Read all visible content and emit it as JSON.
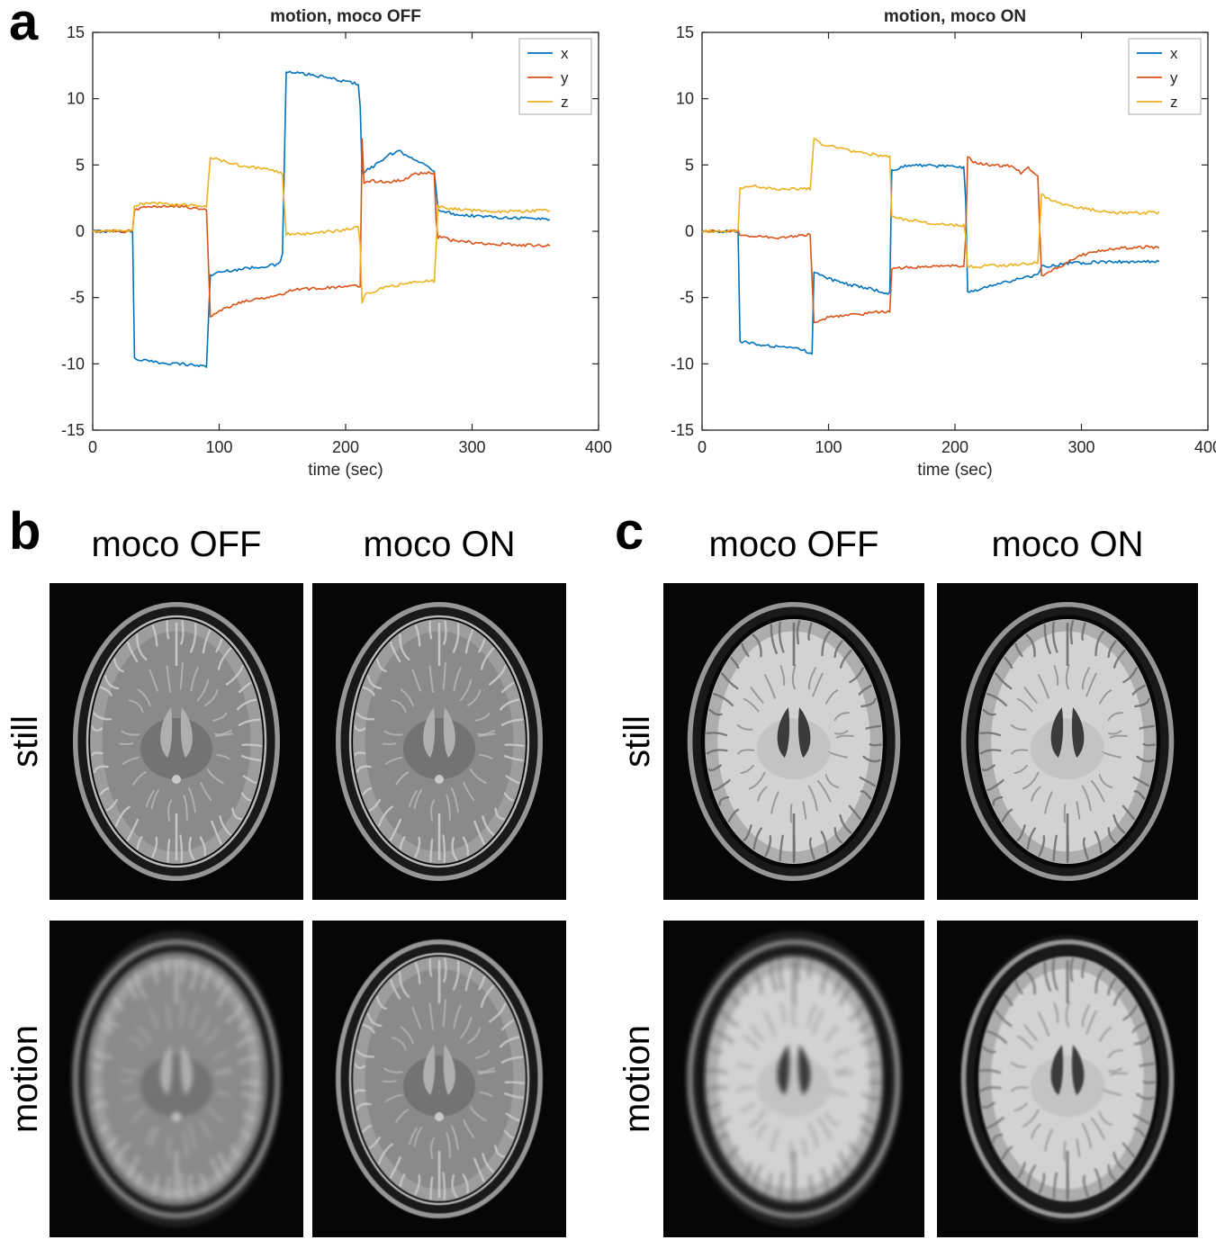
{
  "panels": {
    "a": {
      "label": "a"
    },
    "b": {
      "label": "b",
      "style": "t2",
      "col_headers": [
        "moco OFF",
        "moco ON"
      ],
      "row_labels": [
        "still",
        "motion"
      ],
      "images": [
        {
          "row": "still",
          "col": "moco OFF",
          "artifact": "none"
        },
        {
          "row": "still",
          "col": "moco ON",
          "artifact": "none"
        },
        {
          "row": "motion",
          "col": "moco OFF",
          "artifact": "severe"
        },
        {
          "row": "motion",
          "col": "moco ON",
          "artifact": "slight"
        }
      ]
    },
    "c": {
      "label": "c",
      "style": "t1",
      "col_headers": [
        "moco OFF",
        "moco ON"
      ],
      "row_labels": [
        "still",
        "motion"
      ],
      "images": [
        {
          "row": "still",
          "col": "moco OFF",
          "artifact": "none"
        },
        {
          "row": "still",
          "col": "moco ON",
          "artifact": "none"
        },
        {
          "row": "motion",
          "col": "moco OFF",
          "artifact": "severe"
        },
        {
          "row": "motion",
          "col": "moco ON",
          "artifact": "mild"
        }
      ]
    }
  },
  "chart_data": [
    {
      "type": "line",
      "title": "motion, moco OFF",
      "xlabel": "time (sec)",
      "ylabel": "",
      "xlim": [
        0,
        400
      ],
      "ylim": [
        -15,
        15
      ],
      "xticks": [
        0,
        100,
        200,
        300,
        400
      ],
      "yticks": [
        -15,
        -10,
        -5,
        0,
        5,
        10,
        15
      ],
      "grid": false,
      "legend": [
        "x",
        "y",
        "z"
      ],
      "legend_position": "northeast",
      "series": [
        {
          "name": "x",
          "color": "#0072BD",
          "points": [
            [
              0,
              0
            ],
            [
              32,
              0
            ],
            [
              33,
              -9.6
            ],
            [
              50,
              -9.9
            ],
            [
              70,
              -10
            ],
            [
              91,
              -10.2
            ],
            [
              92,
              -3.3
            ],
            [
              105,
              -3
            ],
            [
              130,
              -2.7
            ],
            [
              148,
              -2.5
            ],
            [
              150,
              -1.7
            ],
            [
              151,
              -1.6
            ],
            [
              152,
              12
            ],
            [
              165,
              11.9
            ],
            [
              185,
              11.6
            ],
            [
              205,
              11.2
            ],
            [
              211,
              11.1
            ],
            [
              213,
              4.4
            ],
            [
              222,
              4.9
            ],
            [
              235,
              5.8
            ],
            [
              243,
              6
            ],
            [
              252,
              5.6
            ],
            [
              262,
              5
            ],
            [
              269,
              4.6
            ],
            [
              271,
              4.5
            ],
            [
              272,
              1.7
            ],
            [
              285,
              1.3
            ],
            [
              310,
              1.1
            ],
            [
              340,
              1
            ],
            [
              362,
              0.9
            ]
          ]
        },
        {
          "name": "y",
          "color": "#D95319",
          "points": [
            [
              0,
              0
            ],
            [
              32,
              0
            ],
            [
              33,
              1.6
            ],
            [
              45,
              1.9
            ],
            [
              70,
              1.9
            ],
            [
              91,
              1.6
            ],
            [
              92,
              -6.6
            ],
            [
              100,
              -6
            ],
            [
              115,
              -5.4
            ],
            [
              135,
              -5
            ],
            [
              150,
              -4.7
            ],
            [
              151,
              -5
            ],
            [
              152,
              -4.5
            ],
            [
              160,
              -4.4
            ],
            [
              180,
              -4.3
            ],
            [
              200,
              -4.2
            ],
            [
              211,
              -4.1
            ],
            [
              212,
              -4.1
            ],
            [
              213,
              7
            ],
            [
              214,
              3.6
            ],
            [
              220,
              3.8
            ],
            [
              235,
              3.7
            ],
            [
              245,
              3.9
            ],
            [
              255,
              4.3
            ],
            [
              265,
              4.4
            ],
            [
              270,
              4.4
            ],
            [
              272,
              -0.4
            ],
            [
              285,
              -0.7
            ],
            [
              305,
              -0.9
            ],
            [
              330,
              -1
            ],
            [
              362,
              -1.1
            ]
          ]
        },
        {
          "name": "z",
          "color": "#EDB120",
          "points": [
            [
              0,
              0
            ],
            [
              32,
              0
            ],
            [
              33,
              2
            ],
            [
              50,
              2.1
            ],
            [
              91,
              1.9
            ],
            [
              92,
              5.7
            ],
            [
              98,
              5.4
            ],
            [
              115,
              5
            ],
            [
              135,
              4.7
            ],
            [
              150,
              4.4
            ],
            [
              151,
              4.2
            ],
            [
              152,
              -0.2
            ],
            [
              170,
              -0.2
            ],
            [
              190,
              0
            ],
            [
              205,
              0.2
            ],
            [
              211,
              0.3
            ],
            [
              213,
              -5.3
            ],
            [
              216,
              -4.7
            ],
            [
              230,
              -4.3
            ],
            [
              245,
              -4
            ],
            [
              260,
              -3.8
            ],
            [
              269,
              -3.7
            ],
            [
              271,
              -4.2
            ],
            [
              272,
              1.9
            ],
            [
              285,
              1.7
            ],
            [
              310,
              1.5
            ],
            [
              340,
              1.5
            ],
            [
              362,
              1.6
            ]
          ]
        }
      ]
    },
    {
      "type": "line",
      "title": "motion, moco ON",
      "xlabel": "time (sec)",
      "ylabel": "",
      "xlim": [
        0,
        400
      ],
      "ylim": [
        -15,
        15
      ],
      "xticks": [
        0,
        100,
        200,
        300,
        400
      ],
      "yticks": [
        -15,
        -10,
        -5,
        0,
        5,
        10,
        15
      ],
      "grid": false,
      "legend": [
        "x",
        "y",
        "z"
      ],
      "legend_position": "northeast",
      "series": [
        {
          "name": "x",
          "color": "#0072BD",
          "points": [
            [
              0,
              0
            ],
            [
              29,
              0
            ],
            [
              30,
              -8.3
            ],
            [
              55,
              -8.7
            ],
            [
              80,
              -8.9
            ],
            [
              86,
              -9.3
            ],
            [
              87,
              -9.2
            ],
            [
              88,
              -3.1
            ],
            [
              110,
              -3.9
            ],
            [
              140,
              -4.5
            ],
            [
              149,
              -4.7
            ],
            [
              150,
              4.6
            ],
            [
              165,
              5
            ],
            [
              190,
              4.9
            ],
            [
              208,
              4.8
            ],
            [
              210,
              -4.6
            ],
            [
              225,
              -4.2
            ],
            [
              245,
              -3.7
            ],
            [
              266,
              -3.3
            ],
            [
              268,
              -2.7
            ],
            [
              290,
              -2.4
            ],
            [
              330,
              -2.3
            ],
            [
              362,
              -2.3
            ]
          ]
        },
        {
          "name": "y",
          "color": "#D95319",
          "points": [
            [
              0,
              0
            ],
            [
              29,
              0
            ],
            [
              30,
              -0.3
            ],
            [
              60,
              -0.5
            ],
            [
              86,
              -0.2
            ],
            [
              88,
              -6.9
            ],
            [
              100,
              -6.5
            ],
            [
              130,
              -6.2
            ],
            [
              149,
              -6
            ],
            [
              150,
              -2.8
            ],
            [
              170,
              -2.7
            ],
            [
              208,
              -2.6
            ],
            [
              210,
              5.7
            ],
            [
              215,
              5.2
            ],
            [
              230,
              5
            ],
            [
              245,
              4.9
            ],
            [
              252,
              4.4
            ],
            [
              258,
              4.8
            ],
            [
              266,
              4.1
            ],
            [
              268,
              -3.4
            ],
            [
              280,
              -2.8
            ],
            [
              300,
              -1.8
            ],
            [
              320,
              -1.4
            ],
            [
              340,
              -1.2
            ],
            [
              362,
              -1.2
            ]
          ]
        },
        {
          "name": "z",
          "color": "#EDB120",
          "points": [
            [
              0,
              0
            ],
            [
              29,
              0
            ],
            [
              30,
              3.2
            ],
            [
              40,
              3.4
            ],
            [
              60,
              3.2
            ],
            [
              86,
              3.2
            ],
            [
              88,
              7
            ],
            [
              95,
              6.6
            ],
            [
              120,
              6
            ],
            [
              149,
              5.6
            ],
            [
              150,
              1.1
            ],
            [
              160,
              0.9
            ],
            [
              180,
              0.6
            ],
            [
              208,
              0.4
            ],
            [
              210,
              -2.7
            ],
            [
              230,
              -2.6
            ],
            [
              250,
              -2.5
            ],
            [
              266,
              -2.4
            ],
            [
              268,
              2.8
            ],
            [
              275,
              2.4
            ],
            [
              290,
              1.9
            ],
            [
              310,
              1.6
            ],
            [
              330,
              1.4
            ],
            [
              362,
              1.4
            ]
          ]
        }
      ]
    }
  ]
}
